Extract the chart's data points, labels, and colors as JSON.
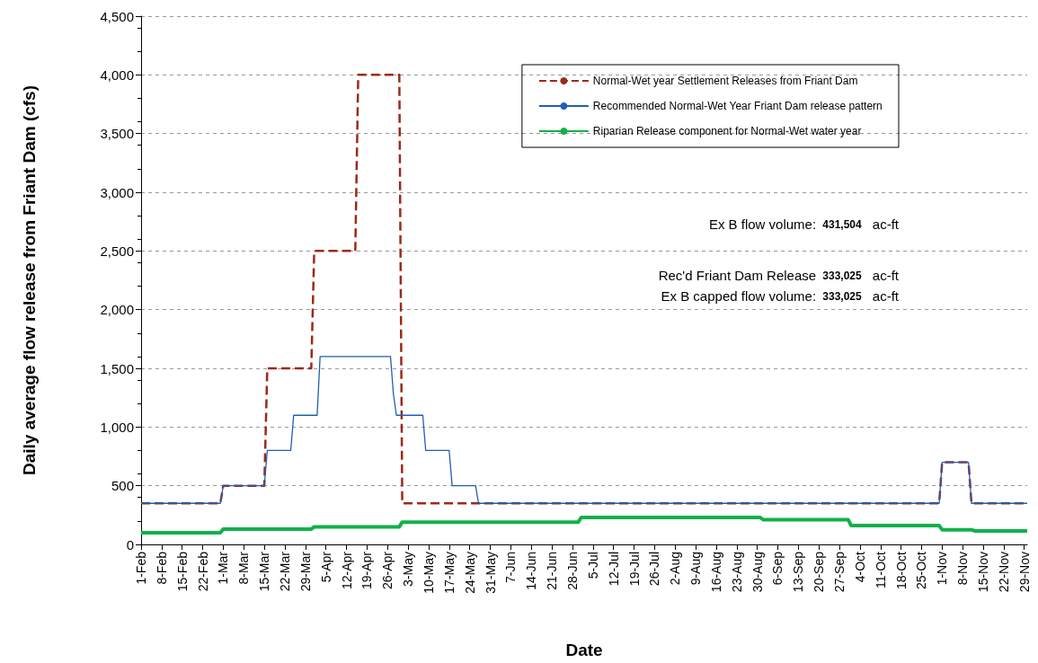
{
  "chart_data": {
    "type": "line",
    "xlabel": "Date",
    "ylabel": "Daily average flow release from Friant Dam (cfs)",
    "xlim": [
      "--02-01",
      "--11-30"
    ],
    "xticks": [
      {
        "value": "--02-01",
        "label": "1-Feb"
      },
      {
        "value": "--02-08",
        "label": "8-Feb"
      },
      {
        "value": "--02-15",
        "label": "15-Feb"
      },
      {
        "value": "--02-22",
        "label": "22-Feb"
      },
      {
        "value": "--03-01",
        "label": "1-Mar"
      },
      {
        "value": "--03-08",
        "label": "8-Mar"
      },
      {
        "value": "--03-15",
        "label": "15-Mar"
      },
      {
        "value": "--03-22",
        "label": "22-Mar"
      },
      {
        "value": "--03-29",
        "label": "29-Mar"
      },
      {
        "value": "--04-05",
        "label": "5-Apr"
      },
      {
        "value": "--04-12",
        "label": "12-Apr"
      },
      {
        "value": "--04-19",
        "label": "19-Apr"
      },
      {
        "value": "--04-26",
        "label": "26-Apr"
      },
      {
        "value": "--05-03",
        "label": "3-May"
      },
      {
        "value": "--05-10",
        "label": "10-May"
      },
      {
        "value": "--05-17",
        "label": "17-May"
      },
      {
        "value": "--05-24",
        "label": "24-May"
      },
      {
        "value": "--05-31",
        "label": "31-May"
      },
      {
        "value": "--06-07",
        "label": "7-Jun"
      },
      {
        "value": "--06-14",
        "label": "14-Jun"
      },
      {
        "value": "--06-21",
        "label": "21-Jun"
      },
      {
        "value": "--06-28",
        "label": "28-Jun"
      },
      {
        "value": "--07-05",
        "label": "5-Jul"
      },
      {
        "value": "--07-12",
        "label": "12-Jul"
      },
      {
        "value": "--07-19",
        "label": "19-Jul"
      },
      {
        "value": "--07-26",
        "label": "26-Jul"
      },
      {
        "value": "--08-02",
        "label": "2-Aug"
      },
      {
        "value": "--08-09",
        "label": "9-Aug"
      },
      {
        "value": "--08-16",
        "label": "16-Aug"
      },
      {
        "value": "--08-23",
        "label": "23-Aug"
      },
      {
        "value": "--08-30",
        "label": "30-Aug"
      },
      {
        "value": "--09-06",
        "label": "6-Sep"
      },
      {
        "value": "--09-13",
        "label": "13-Sep"
      },
      {
        "value": "--09-20",
        "label": "20-Sep"
      },
      {
        "value": "--09-27",
        "label": "27-Sep"
      },
      {
        "value": "--10-04",
        "label": "4-Oct"
      },
      {
        "value": "--10-11",
        "label": "11-Oct"
      },
      {
        "value": "--10-18",
        "label": "18-Oct"
      },
      {
        "value": "--10-25",
        "label": "25-Oct"
      },
      {
        "value": "--11-01",
        "label": "1-Nov"
      },
      {
        "value": "--11-08",
        "label": "8-Nov"
      },
      {
        "value": "--11-15",
        "label": "15-Nov"
      },
      {
        "value": "--11-22",
        "label": "22-Nov"
      },
      {
        "value": "--11-29",
        "label": "29-Nov"
      }
    ],
    "ylim": [
      0,
      4500
    ],
    "yticks": [
      0,
      500,
      {
        "value": 1000,
        "label": "1,000"
      },
      {
        "value": 1500,
        "label": "1,500"
      },
      {
        "value": 2000,
        "label": "2,000"
      },
      {
        "value": 2500,
        "label": "2,500"
      },
      {
        "value": 3000,
        "label": "3,000"
      },
      {
        "value": 3500,
        "label": "3,500"
      },
      {
        "value": 4000,
        "label": "4,000"
      },
      {
        "value": 4500,
        "label": "4,500"
      }
    ],
    "grid": "y",
    "legend": "top right",
    "marker": "none",
    "series": [
      {
        "name": "Normal-Wet year Settlement Releases from Friant Dam",
        "color": "#9c2a1a",
        "line_style": "dashed",
        "x": [
          "--02-01",
          "--02-28",
          "--03-01",
          "--03-15",
          "--03-16",
          "--03-31",
          "--04-01",
          "--04-15",
          "--04-16",
          "--04-30",
          "--05-01",
          "--10-31",
          "--11-01",
          "--11-10",
          "--11-11",
          "--11-30"
        ],
        "values": [
          350,
          350,
          500,
          500,
          1500,
          1500,
          2500,
          2500,
          4000,
          4000,
          350,
          350,
          700,
          700,
          350,
          350
        ]
      },
      {
        "name": "Recommended Normal-Wet Year Friant Dam release pattern",
        "color": "#1f5fb4",
        "line_style": "solid",
        "x": [
          "--02-01",
          "--02-28",
          "--03-01",
          "--03-15",
          "--03-16",
          "--03-24",
          "--03-25",
          "--04-02",
          "--04-03",
          "--04-27",
          "--04-28",
          "--04-29",
          "--05-08",
          "--05-09",
          "--05-17",
          "--05-18",
          "--05-26",
          "--05-27",
          "--10-31",
          "--11-01",
          "--11-10",
          "--11-11",
          "--11-30"
        ],
        "values": [
          350,
          350,
          500,
          500,
          800,
          800,
          1100,
          1100,
          1600,
          1600,
          1280,
          1100,
          1100,
          800,
          800,
          500,
          500,
          350,
          350,
          700,
          700,
          350,
          350
        ]
      },
      {
        "name": "Riparian Release component for Normal-Wet water year",
        "color": "#12b04a",
        "line_style": "solid",
        "x": [
          "--02-01",
          "--02-28",
          "--03-01",
          "--03-31",
          "--04-01",
          "--04-30",
          "--05-01",
          "--06-30",
          "--07-01",
          "--08-31",
          "--09-01",
          "--09-30",
          "--10-01",
          "--10-31",
          "--11-01",
          "--11-11",
          "--11-12",
          "--11-30"
        ],
        "values": [
          100,
          100,
          130,
          130,
          150,
          150,
          190,
          190,
          230,
          230,
          210,
          210,
          160,
          160,
          125,
          125,
          115,
          115
        ]
      }
    ],
    "annotations": [
      "Ex B flow volume: 431,504 ac-ft",
      "Rec'd Friant Dam Release 333,025 ac-ft",
      "Ex B capped flow volume: 333,025 ac-ft"
    ]
  }
}
